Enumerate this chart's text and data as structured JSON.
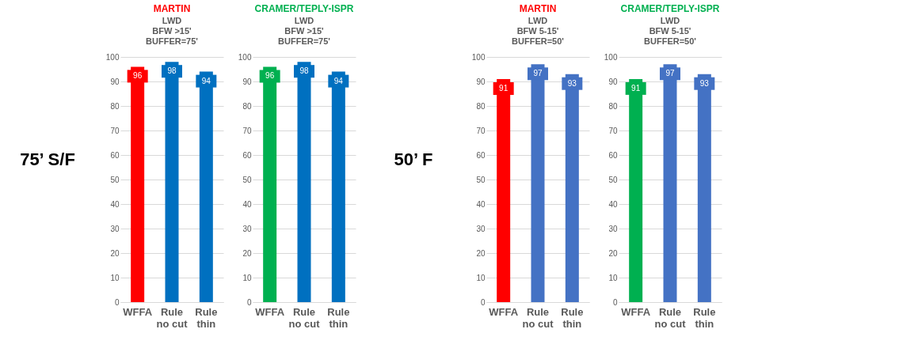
{
  "chart_data": [
    {
      "type": "bar",
      "title": "MARTIN",
      "subtitle": "LWD\nBFW >15'\nBUFFER=75'",
      "annotations": [
        "75’ S/F"
      ],
      "categories": [
        "WFFA",
        "Rule\nno cut",
        "Rule\nthin"
      ],
      "values": [
        96,
        98,
        94
      ],
      "colors": [
        "#ff0000",
        "#0070c0",
        "#0070c0"
      ],
      "ylim": [
        0,
        100
      ],
      "yticks": [
        0,
        10,
        20,
        30,
        40,
        50,
        60,
        70,
        80,
        90,
        100
      ],
      "grid": "y",
      "data_labels": true
    },
    {
      "type": "bar",
      "title": "CRAMER/TEPLY-ISPR",
      "subtitle": "LWD\nBFW >15'\nBUFFER=75'",
      "categories": [
        "WFFA",
        "Rule\nno cut",
        "Rule\nthin"
      ],
      "values": [
        96,
        98,
        94
      ],
      "colors": [
        "#00b050",
        "#0070c0",
        "#0070c0"
      ],
      "ylim": [
        0,
        100
      ],
      "yticks": [
        0,
        10,
        20,
        30,
        40,
        50,
        60,
        70,
        80,
        90,
        100
      ],
      "grid": "y",
      "data_labels": true
    },
    {
      "type": "bar",
      "title": "MARTIN",
      "subtitle": "LWD\nBFW 5-15'\nBUFFER=50'",
      "annotations": [
        "50’ F"
      ],
      "categories": [
        "WFFA",
        "Rule\nno cut",
        "Rule\nthin"
      ],
      "values": [
        91,
        97,
        93
      ],
      "colors": [
        "#ff0000",
        "#4472c4",
        "#4472c4"
      ],
      "ylim": [
        0,
        100
      ],
      "yticks": [
        0,
        10,
        20,
        30,
        40,
        50,
        60,
        70,
        80,
        90,
        100
      ],
      "grid": "y",
      "data_labels": true
    },
    {
      "type": "bar",
      "title": "CRAMER/TEPLY-ISPR",
      "subtitle": "LWD\nBFW 5-15'\nBUFFER=50'",
      "categories": [
        "WFFA",
        "Rule\nno cut",
        "Rule\nthin"
      ],
      "values": [
        91,
        97,
        93
      ],
      "colors": [
        "#00b050",
        "#4472c4",
        "#4472c4"
      ],
      "ylim": [
        0,
        100
      ],
      "yticks": [
        0,
        10,
        20,
        30,
        40,
        50,
        60,
        70,
        80,
        90,
        100
      ],
      "grid": "y",
      "data_labels": true
    }
  ]
}
